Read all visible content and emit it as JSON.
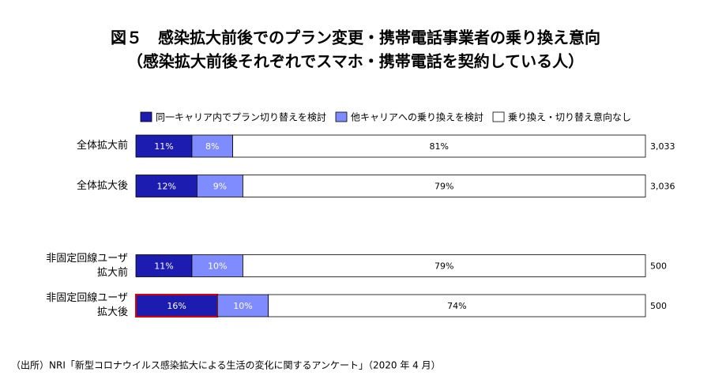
{
  "chart_data": {
    "type": "stacked_barh",
    "title": "図５　感染拡大前後でのプラン変更・携帯電話事業者の乗り換え意向",
    "subtitle": "（感染拡大前後それぞれでスマホ・携帯電話を契約している人）",
    "categories": [
      "全体拡大前",
      "全体拡大後",
      null,
      "非固定回線ユーザ\n拡大前",
      "非固定回線ユーザ\n拡大後"
    ],
    "series": [
      {
        "name": "同一キャリア内でプラン切り替えを検討",
        "color": "#1c1cb0",
        "values": [
          11,
          12,
          null,
          11,
          16
        ],
        "value_labels": [
          "11%",
          "12%",
          null,
          "11%",
          "16%"
        ]
      },
      {
        "name": "他キャリアへの乗り換えを検討",
        "color": "#7f8cff",
        "values": [
          8,
          9,
          null,
          10,
          10
        ],
        "value_labels": [
          "8%",
          "9%",
          null,
          "10%",
          "10%"
        ]
      },
      {
        "name": "乗り換え・切り替え意向なし",
        "color": "#ffffff",
        "values": [
          81,
          79,
          null,
          79,
          74
        ],
        "value_labels": [
          "81%",
          "79%",
          null,
          "79%",
          "74%"
        ]
      }
    ],
    "sample_sizes": [
      "3,033",
      "3,036",
      null,
      "500",
      "500"
    ],
    "xlim": [
      0,
      100
    ],
    "highlight": {
      "series": 0,
      "index": 4,
      "color": "#e00000"
    },
    "source": "（出所）NRI「新型コロナウイルス感染拡大による生活の変化に関するアンケート」（2020 年 4 月）"
  }
}
